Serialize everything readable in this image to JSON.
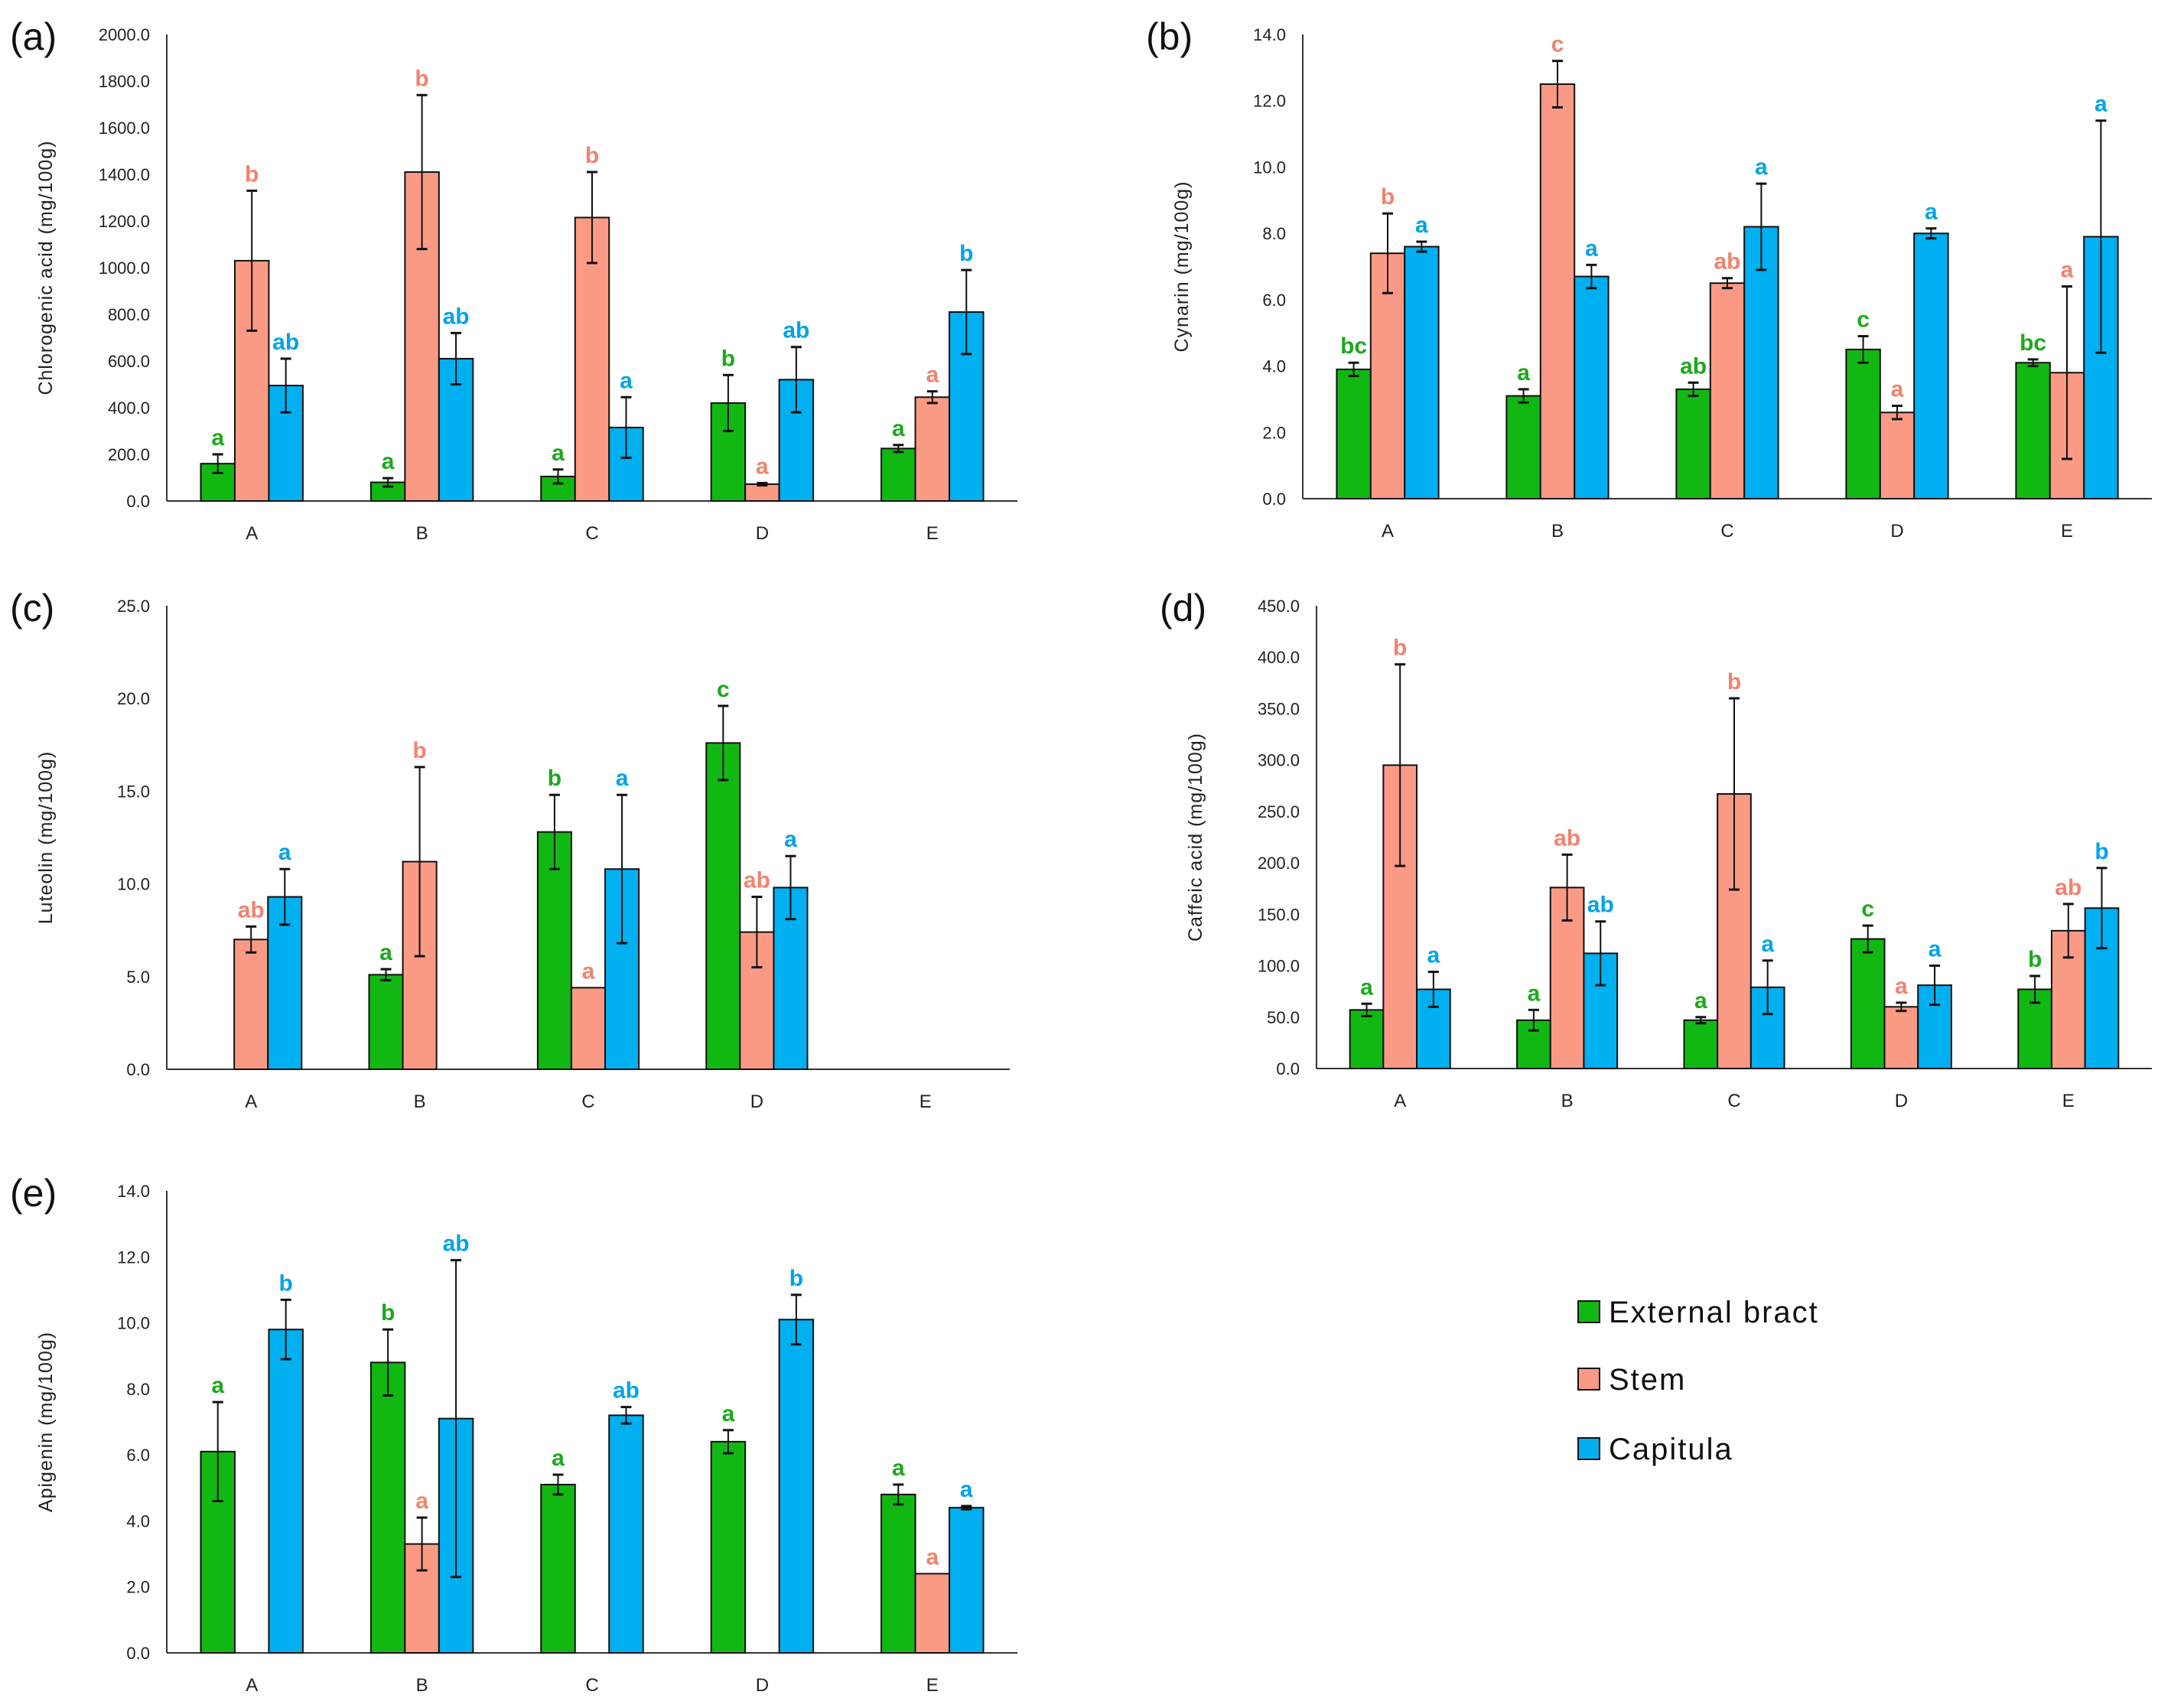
{
  "colors": {
    "External bract": "#12B812",
    "Stem": "#FA9A85",
    "Capitula": "#00B0F0",
    "letter_External bract": "#1DA81D",
    "letter_Stem": "#F2826F",
    "letter_Capitula": "#00A3E8"
  },
  "legend": {
    "items": [
      "External bract",
      "Stem",
      "Capitula"
    ],
    "placement": "bottom-right"
  },
  "chart_data": [
    {
      "type": "bar",
      "panel": "(a)",
      "ylabel": "Chlorogenic acid (mg/100g)",
      "xlabel": "",
      "ylim": [
        0,
        2000
      ],
      "yticks": [
        "0.0",
        "200.0",
        "400.0",
        "600.0",
        "800.0",
        "1000.0",
        "1200.0",
        "1400.0",
        "1600.0",
        "1800.0",
        "2000.0"
      ],
      "categories": [
        "A",
        "B",
        "C",
        "D",
        "E"
      ],
      "series": [
        {
          "name": "External bract",
          "values": [
            160,
            80,
            105,
            420,
            225
          ],
          "errors": [
            40,
            18,
            30,
            120,
            15
          ],
          "letters": [
            "a",
            "a",
            "a",
            "b",
            "a"
          ]
        },
        {
          "name": "Stem",
          "values": [
            1030,
            1410,
            1215,
            72,
            445
          ],
          "errors": [
            300,
            330,
            195,
            5,
            25
          ],
          "letters": [
            "b",
            "b",
            "b",
            "a",
            "a"
          ]
        },
        {
          "name": "Capitula",
          "values": [
            495,
            610,
            315,
            520,
            810
          ],
          "errors": [
            115,
            110,
            130,
            140,
            180
          ],
          "letters": [
            "ab",
            "ab",
            "a",
            "ab",
            "b"
          ]
        }
      ]
    },
    {
      "type": "bar",
      "panel": "(b)",
      "ylabel": "Cynarin (mg/100g)",
      "xlabel": "",
      "ylim": [
        0,
        14
      ],
      "yticks": [
        "0.0",
        "2.0",
        "4.0",
        "6.0",
        "8.0",
        "10.0",
        "12.0",
        "14.0"
      ],
      "categories": [
        "A",
        "B",
        "C",
        "D",
        "E"
      ],
      "series": [
        {
          "name": "External bract",
          "values": [
            3.9,
            3.1,
            3.3,
            4.5,
            4.1
          ],
          "errors": [
            0.2,
            0.2,
            0.2,
            0.4,
            0.1
          ],
          "letters": [
            "bc",
            "a",
            "ab",
            "c",
            "bc"
          ]
        },
        {
          "name": "Stem",
          "values": [
            7.4,
            12.5,
            6.5,
            2.6,
            3.8
          ],
          "errors": [
            1.2,
            0.7,
            0.15,
            0.2,
            2.6
          ],
          "letters": [
            "b",
            "c",
            "ab",
            "a",
            "a"
          ]
        },
        {
          "name": "Capitula",
          "values": [
            7.6,
            6.7,
            8.2,
            8.0,
            7.9
          ],
          "errors": [
            0.15,
            0.35,
            1.3,
            0.15,
            3.5
          ],
          "letters": [
            "a",
            "a",
            "a",
            "a",
            "a"
          ]
        }
      ]
    },
    {
      "type": "bar",
      "panel": "(c)",
      "ylabel": "Luteolin (mg/100g)",
      "xlabel": "",
      "ylim": [
        0,
        25
      ],
      "yticks": [
        "0.0",
        "5.0",
        "10.0",
        "15.0",
        "20.0",
        "25.0"
      ],
      "categories": [
        "A",
        "B",
        "C",
        "D",
        "E"
      ],
      "series": [
        {
          "name": "External bract",
          "values": [
            null,
            5.1,
            12.8,
            17.6,
            null
          ],
          "errors": [
            null,
            0.3,
            2.0,
            2.0,
            null
          ],
          "letters": [
            "",
            "a",
            "b",
            "c",
            ""
          ]
        },
        {
          "name": "Stem",
          "values": [
            7.0,
            11.2,
            4.4,
            7.4,
            null
          ],
          "errors": [
            0.7,
            5.1,
            0,
            1.9,
            null
          ],
          "letters": [
            "ab",
            "b",
            "a",
            "ab",
            ""
          ]
        },
        {
          "name": "Capitula",
          "values": [
            9.3,
            null,
            10.8,
            9.8,
            null
          ],
          "errors": [
            1.5,
            null,
            4.0,
            1.7,
            null
          ],
          "letters": [
            "a",
            "",
            "a",
            "a",
            ""
          ]
        }
      ]
    },
    {
      "type": "bar",
      "panel": "(d)",
      "ylabel": "Caffeic acid (mg/100g)",
      "xlabel": "",
      "ylim": [
        0,
        450
      ],
      "yticks": [
        "0.0",
        "50.0",
        "100.0",
        "150.0",
        "200.0",
        "250.0",
        "300.0",
        "350.0",
        "400.0",
        "450.0"
      ],
      "categories": [
        "A",
        "B",
        "C",
        "D",
        "E"
      ],
      "series": [
        {
          "name": "External bract",
          "values": [
            57,
            47,
            47,
            126,
            77
          ],
          "errors": [
            6,
            10,
            3,
            13,
            13
          ],
          "letters": [
            "a",
            "a",
            "a",
            "c",
            "b"
          ]
        },
        {
          "name": "Stem",
          "values": [
            295,
            176,
            267,
            60,
            134
          ],
          "errors": [
            98,
            32,
            93,
            4,
            26
          ],
          "letters": [
            "b",
            "ab",
            "b",
            "a",
            "ab"
          ]
        },
        {
          "name": "Capitula",
          "values": [
            77,
            112,
            79,
            81,
            156
          ],
          "errors": [
            17,
            31,
            26,
            19,
            39
          ],
          "letters": [
            "a",
            "ab",
            "a",
            "a",
            "b"
          ]
        }
      ]
    },
    {
      "type": "bar",
      "panel": "(e)",
      "ylabel": "Apigenin (mg/100g)",
      "xlabel": "",
      "ylim": [
        0,
        14
      ],
      "yticks": [
        "0.0",
        "2.0",
        "4.0",
        "6.0",
        "8.0",
        "10.0",
        "12.0",
        "14.0"
      ],
      "categories": [
        "A",
        "B",
        "C",
        "D",
        "E"
      ],
      "series": [
        {
          "name": "External bract",
          "values": [
            6.1,
            8.8,
            5.1,
            6.4,
            4.8
          ],
          "errors": [
            1.5,
            1.0,
            0.3,
            0.35,
            0.3
          ],
          "letters": [
            "a",
            "b",
            "a",
            "a",
            "a"
          ]
        },
        {
          "name": "Stem",
          "values": [
            null,
            3.3,
            null,
            null,
            2.4
          ],
          "errors": [
            null,
            0.8,
            null,
            null,
            0
          ],
          "letters": [
            "",
            "a",
            "",
            "",
            "a"
          ]
        },
        {
          "name": "Capitula",
          "values": [
            9.8,
            7.1,
            7.2,
            10.1,
            4.4
          ],
          "errors": [
            0.9,
            4.8,
            0.25,
            0.75,
            0.05
          ],
          "letters": [
            "b",
            "ab",
            "ab",
            "b",
            "a"
          ]
        }
      ]
    }
  ]
}
